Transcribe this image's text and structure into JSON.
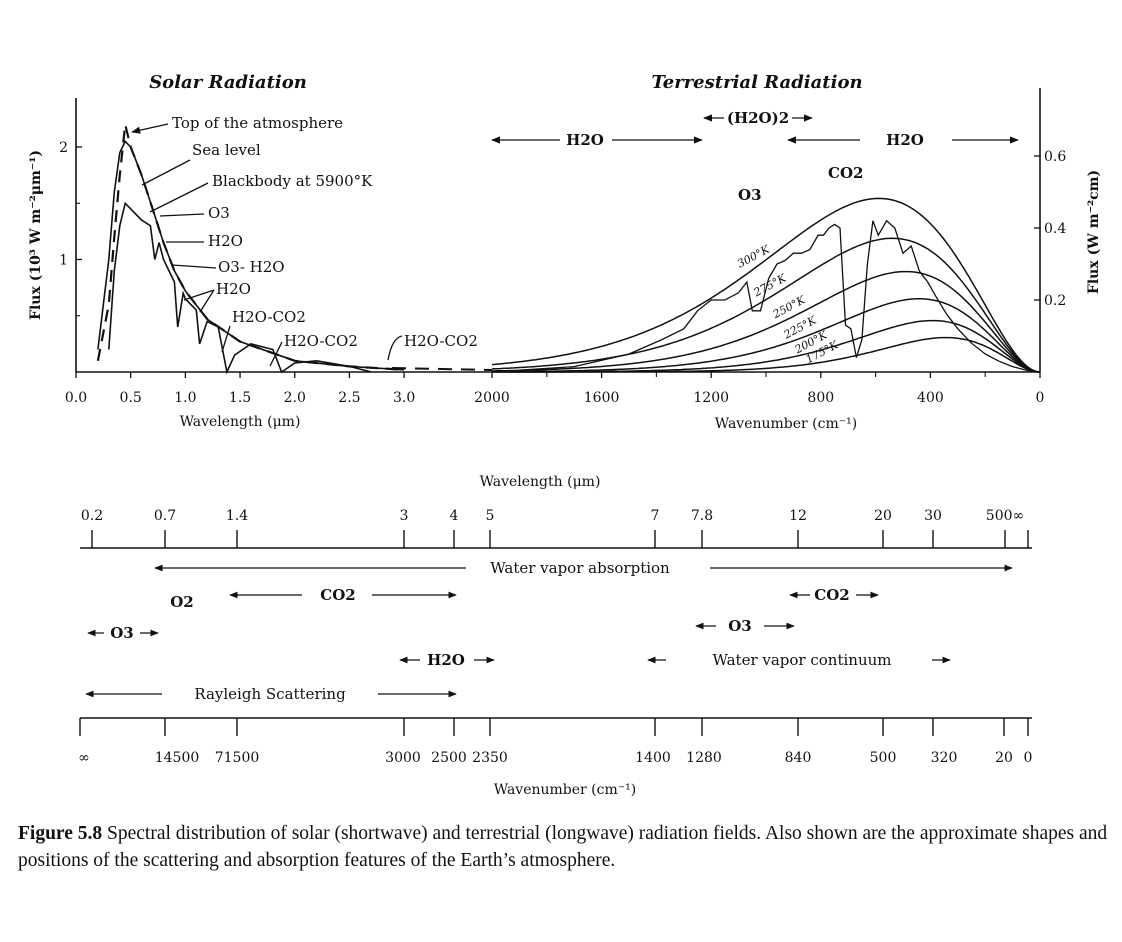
{
  "chart_data": [
    {
      "type": "line",
      "panel": "solar",
      "title": "Solar Radiation",
      "xlabel": "Wavelength (μm)",
      "ylabel": "Flux (10³ W m⁻²μm⁻¹)",
      "xlim": [
        0.0,
        3.2
      ],
      "ylim": [
        0,
        2.4
      ],
      "x_ticks": [
        "0.0",
        "0.5",
        "1.0",
        "1.5",
        "2.0",
        "2.5",
        "3.0"
      ],
      "y_ticks": [
        "1",
        "2"
      ],
      "series": [
        {
          "name": "Top of the atmosphere",
          "x": [
            0.2,
            0.3,
            0.35,
            0.4,
            0.45,
            0.5,
            0.6,
            0.7,
            0.8,
            0.9,
            1.0,
            1.2,
            1.5,
            2.0,
            2.5,
            3.0
          ],
          "y": [
            0.1,
            0.6,
            1.2,
            1.75,
            2.2,
            2.0,
            1.75,
            1.45,
            1.15,
            0.9,
            0.72,
            0.47,
            0.27,
            0.1,
            0.05,
            0.02
          ]
        },
        {
          "name": "Blackbody at 5900°K",
          "x": [
            0.2,
            0.3,
            0.35,
            0.4,
            0.45,
            0.5,
            0.6,
            0.7,
            0.8,
            0.9,
            1.0,
            1.2,
            1.5,
            2.0,
            2.5,
            3.0
          ],
          "y": [
            0.2,
            1.0,
            1.6,
            1.95,
            2.05,
            2.0,
            1.75,
            1.45,
            1.15,
            0.9,
            0.72,
            0.47,
            0.27,
            0.1,
            0.05,
            0.02
          ]
        },
        {
          "name": "Sea level",
          "x": [
            0.3,
            0.35,
            0.4,
            0.45,
            0.5,
            0.6,
            0.68,
            0.72,
            0.76,
            0.8,
            0.9,
            0.93,
            0.98,
            1.0,
            1.1,
            1.13,
            1.2,
            1.3,
            1.38,
            1.45,
            1.6,
            1.8,
            1.88,
            2.0,
            2.2,
            2.5,
            2.7
          ],
          "y": [
            0.2,
            0.9,
            1.3,
            1.5,
            1.45,
            1.35,
            1.3,
            1.0,
            1.15,
            1.0,
            0.8,
            0.4,
            0.7,
            0.65,
            0.55,
            0.25,
            0.45,
            0.4,
            0.0,
            0.15,
            0.25,
            0.2,
            0.0,
            0.08,
            0.1,
            0.05,
            0.0
          ]
        }
      ],
      "annotations": [
        "Top of the atmosphere",
        "Sea level",
        "Blackbody at 5900°K",
        "O3",
        "H2O",
        "O3- H2O",
        "H2O",
        "H2O-CO2",
        "H2O-CO2",
        "H2O-CO2"
      ]
    },
    {
      "type": "line",
      "panel": "terrestrial",
      "title": "Terrestrial Radiation",
      "xlabel": "Wavenumber (cm⁻¹)",
      "ylabel": "Flux (W m⁻²cm)",
      "xlim": [
        2000,
        0
      ],
      "ylim": [
        0,
        0.75
      ],
      "x_ticks": [
        "2000",
        "1600",
        "1200",
        "800",
        "400",
        "0"
      ],
      "y_ticks": [
        "0.2",
        "0.4",
        "0.6"
      ],
      "curve_labels": [
        "300°K",
        "275°K",
        "250°K",
        "225°K",
        "200°K",
        "175°K"
      ],
      "series": [
        {
          "name": "300°K",
          "temperature": 300
        },
        {
          "name": "275°K",
          "temperature": 275
        },
        {
          "name": "250°K",
          "temperature": 250
        },
        {
          "name": "225°K",
          "temperature": 225
        },
        {
          "name": "200°K",
          "temperature": 200
        },
        {
          "name": "175°K",
          "temperature": 175
        },
        {
          "name": "Observed spectrum",
          "x": [
            1900,
            1700,
            1500,
            1380,
            1300,
            1250,
            1200,
            1150,
            1100,
            1070,
            1050,
            1020,
            990,
            960,
            930,
            900,
            870,
            840,
            810,
            790,
            770,
            750,
            730,
            710,
            690,
            670,
            650,
            630,
            610,
            590,
            560,
            530,
            500,
            470,
            440,
            410,
            380,
            340,
            300,
            250,
            200,
            150,
            100,
            50,
            0
          ],
          "y": [
            0.005,
            0.015,
            0.05,
            0.09,
            0.12,
            0.17,
            0.2,
            0.2,
            0.22,
            0.25,
            0.17,
            0.17,
            0.26,
            0.3,
            0.31,
            0.33,
            0.33,
            0.34,
            0.38,
            0.38,
            0.4,
            0.41,
            0.4,
            0.13,
            0.12,
            0.04,
            0.09,
            0.3,
            0.42,
            0.38,
            0.42,
            0.4,
            0.33,
            0.35,
            0.28,
            0.25,
            0.21,
            0.16,
            0.12,
            0.08,
            0.05,
            0.03,
            0.015,
            0.005,
            0.0
          ]
        }
      ],
      "band_labels": {
        "o3": "O3",
        "co2": "CO2"
      },
      "arrows": [
        "H2O",
        "(H2O)2",
        "H2O"
      ]
    },
    {
      "type": "diagram",
      "panel": "absorption_bands",
      "top_axis_title": "Wavelength (μm)",
      "top_ticks": [
        "0.2",
        "0.7",
        "1.4",
        "3",
        "4",
        "5",
        "7",
        "7.8",
        "12",
        "20",
        "30",
        "500∞"
      ],
      "bottom_axis_title": "Wavenumber (cm⁻¹)",
      "bottom_ticks": [
        "∞",
        "14500",
        "71500",
        "3000",
        "2500",
        "2350",
        "1400",
        "1280",
        "840",
        "500",
        "320",
        "20",
        "0"
      ],
      "bands": [
        "Water vapor absorption",
        "O2",
        "CO2",
        "CO2",
        "O3",
        "O3",
        "H2O",
        "Water vapor continuum",
        "Rayleigh Scattering"
      ]
    }
  ],
  "caption": {
    "label": "Figure 5.8",
    "text": "Spectral distribution of solar (shortwave) and terrestrial (longwave) radiation fields. Also shown are the approximate shapes and positions of the scattering and absorption features of the Earth’s atmosphere."
  }
}
